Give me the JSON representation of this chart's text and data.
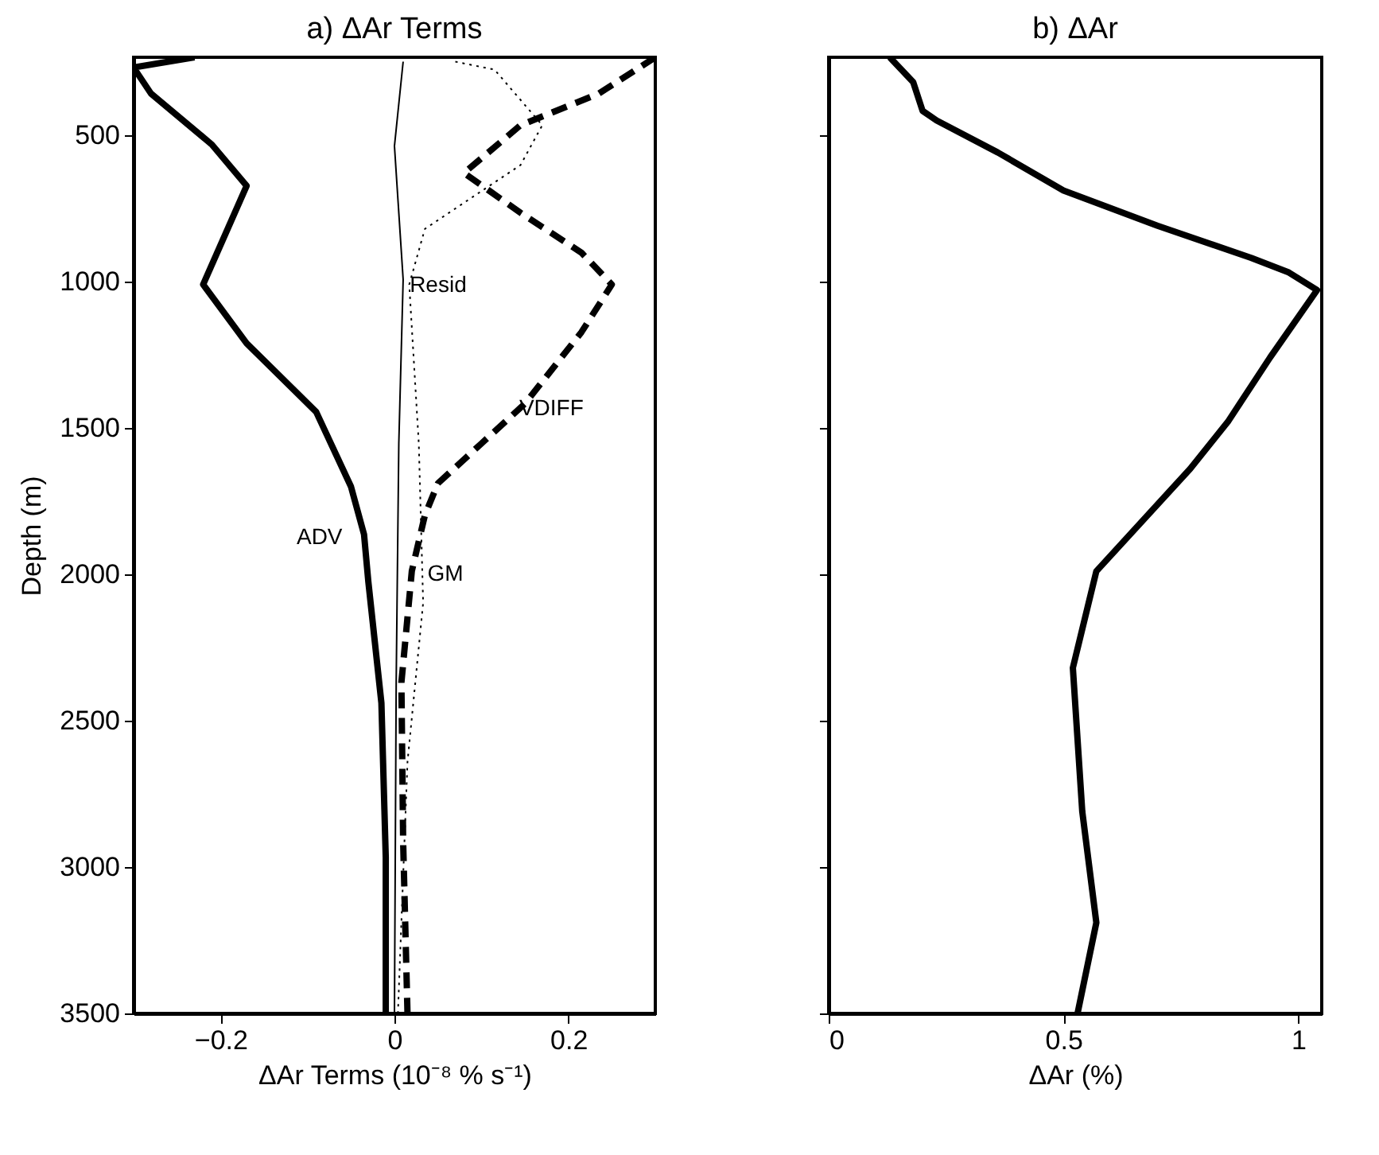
{
  "chart_data": [
    {
      "type": "line",
      "title": "a) ΔAr Terms",
      "xlabel": "ΔAr Terms (10⁻⁸ % s⁻¹)",
      "ylabel": "Depth (m)",
      "series": [
        {
          "name": "ADV",
          "color": "#000000",
          "line_style": "solid",
          "x": [
            -0.23,
            -0.3,
            -0.28,
            -0.21,
            -0.17,
            -0.22,
            -0.17,
            -0.09,
            -0.05,
            -0.035,
            -0.03,
            -0.015,
            -0.01,
            -0.01
          ],
          "values": [
            235,
            270,
            359,
            533,
            674,
            1011,
            1212,
            1446,
            1701,
            1864,
            2027,
            2440,
            2967,
            3500
          ]
        },
        {
          "name": "VDIFF",
          "color": "#000000",
          "line_style": "dashed",
          "x": [
            0.3,
            0.235,
            0.145,
            0.08,
            0.145,
            0.215,
            0.25,
            0.215,
            0.15,
            0.1,
            0.05,
            0.035,
            0.02,
            0.008,
            0.01,
            0.015
          ],
          "values": [
            235,
            359,
            467,
            630,
            766,
            902,
            1011,
            1174,
            1418,
            1554,
            1690,
            1799,
            1989,
            2370,
            2913,
            3500
          ]
        },
        {
          "name": "GM",
          "color": "#000000",
          "line_style": "dotted",
          "x": [
            0.07,
            0.115,
            0.17,
            0.145,
            0.035,
            0.017,
            0.028,
            0.033,
            0.015,
            0.004
          ],
          "values": [
            250,
            277,
            467,
            603,
            821,
            1011,
            1554,
            2098,
            2641,
            3500
          ]
        },
        {
          "name": "Resid",
          "color": "#000000",
          "line_style": "solid",
          "x": [
            0.01,
            0,
            0.01,
            0.005,
            0.002,
            0
          ],
          "values": [
            250,
            538,
            994,
            1554,
            2370,
            3500
          ]
        }
      ],
      "xlim": [
        -0.3,
        0.3
      ],
      "xticks": [
        {
          "value": -0.2,
          "label": "−0.2"
        },
        0,
        0.2
      ],
      "ylim": [
        3500,
        235
      ],
      "yticks": [
        500,
        1000,
        1500,
        2000,
        2500,
        3000,
        3500
      ],
      "grid": false
    },
    {
      "type": "line",
      "title": "b) ΔAr",
      "xlabel": "ΔAr (%)",
      "series": [
        {
          "color": "#000000",
          "line_style": "solid",
          "x": [
            0.13,
            0.18,
            0.2,
            0.23,
            0.36,
            0.5,
            0.7,
            0.9,
            0.98,
            1.04,
            0.94,
            0.85,
            0.77,
            0.57,
            0.52,
            0.54,
            0.57,
            0.53
          ],
          "values": [
            235,
            320,
            418,
            451,
            560,
            690,
            810,
            920,
            970,
            1030,
            1260,
            1480,
            1640,
            1990,
            2320,
            2810,
            3190,
            3500
          ]
        }
      ],
      "xlim": [
        0,
        1.05
      ],
      "xticks": [
        0,
        0.5,
        1
      ],
      "ylim": [
        3500,
        235
      ],
      "yticks": [
        500,
        1000,
        1500,
        2000,
        2500,
        3000,
        3500
      ],
      "tick_labels": "x",
      "grid": false
    }
  ]
}
